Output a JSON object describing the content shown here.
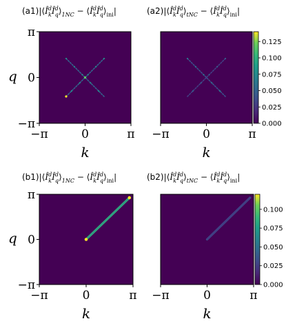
{
  "chart_data": [
    {
      "type": "heatmap",
      "panel_label": "(a1)",
      "title": "|⟨Î_k^d Î_q^d⟩_1NC − ⟨Î_k^d Î_q^d⟩_ini|",
      "title_parts": [
        "⟨",
        "Î",
        "d",
        "k",
        "Î",
        "d",
        "q",
        "⟩",
        "1NC",
        " − ⟨",
        "Î",
        "d",
        "k",
        "Î",
        "d",
        "q",
        "⟩",
        "ini",
        "|"
      ],
      "xlabel": "k",
      "ylabel": "q",
      "xticks": [
        "−π",
        "0",
        "π"
      ],
      "yticks": [
        "π",
        "0",
        "−π"
      ],
      "xlim": [
        "-π",
        "π"
      ],
      "ylim": [
        "-π",
        "π"
      ],
      "background_value": 0,
      "pattern": "X",
      "features": [
        {
          "shape": "line",
          "from": [
            -1.3,
            1.3
          ],
          "to": [
            1.3,
            -1.3
          ],
          "value": 0.05
        },
        {
          "shape": "line",
          "from": [
            -1.3,
            -1.3
          ],
          "to": [
            1.3,
            1.3
          ],
          "value": 0.05
        }
      ]
    },
    {
      "type": "heatmap",
      "panel_label": "(a2)",
      "title": "|⟨Î_k^d Î_q^d⟩_tNC − ⟨Î_k^d Î_q^d⟩_ini|",
      "xlabel": "k",
      "ylabel": "",
      "xticks": [
        "−π",
        "0",
        "π"
      ],
      "yticks": [],
      "xlim": [
        "-π",
        "π"
      ],
      "ylim": [
        "-π",
        "π"
      ],
      "background_value": 0,
      "pattern": "X",
      "features": [
        {
          "shape": "line",
          "from": [
            -1.3,
            1.3
          ],
          "to": [
            1.3,
            -1.3
          ],
          "value": 0.04
        },
        {
          "shape": "line",
          "from": [
            -1.3,
            -1.3
          ],
          "to": [
            1.3,
            1.3
          ],
          "value": 0.03
        }
      ],
      "colorbar": {
        "min": 0,
        "max": 0.14,
        "ticks": [
          "0.000",
          "0.025",
          "0.050",
          "0.075",
          "0.100",
          "0.125"
        ],
        "colormap": "viridis"
      }
    },
    {
      "type": "heatmap",
      "panel_label": "(b1)",
      "title": "|⟨Î_k^d Î_q^d⟩_1NC − ⟨Î_k^d Î_q^d⟩_ini|",
      "xlabel": "k",
      "ylabel": "q",
      "xticks": [
        "−π",
        "0",
        "π"
      ],
      "yticks": [
        "π",
        "0",
        "−π"
      ],
      "xlim": [
        "-π",
        "π"
      ],
      "ylim": [
        "-π",
        "π"
      ],
      "background_value": 0,
      "pattern": "diagonal",
      "features": [
        {
          "shape": "line",
          "from": [
            0,
            0
          ],
          "to": [
            2.9,
            2.9
          ],
          "value": 0.09
        }
      ]
    },
    {
      "type": "heatmap",
      "panel_label": "(b2)",
      "title": "|⟨Î_k^d Î_q^d⟩_tNC − ⟨Î_k^d Î_q^d⟩_ini|",
      "xlabel": "k",
      "ylabel": "",
      "xticks": [
        "−π",
        "0",
        "π"
      ],
      "yticks": [],
      "xlim": [
        "-π",
        "π"
      ],
      "ylim": [
        "-π",
        "π"
      ],
      "background_value": 0,
      "pattern": "diagonal",
      "features": [
        {
          "shape": "line",
          "from": [
            0,
            0
          ],
          "to": [
            2.9,
            2.9
          ],
          "value": 0.03
        }
      ],
      "colorbar": {
        "min": 0,
        "max": 0.12,
        "ticks": [
          "0.000",
          "0.025",
          "0.050",
          "0.075",
          "0.100"
        ],
        "colormap": "viridis"
      }
    }
  ]
}
